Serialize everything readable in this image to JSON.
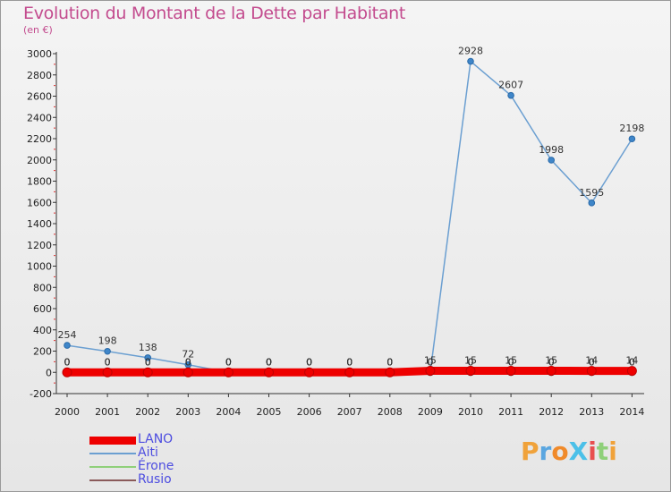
{
  "title": "Evolution du Montant de la Dette par Habitant",
  "subtitle": "(en €)",
  "logo": "ProXiti",
  "chart_data": {
    "type": "line",
    "title": "Evolution du Montant de la Dette par Habitant",
    "ylabel": "(en €)",
    "x": [
      "2000",
      "2001",
      "2002",
      "2003",
      "2004",
      "2005",
      "2006",
      "2007",
      "2008",
      "2009",
      "2010",
      "2011",
      "2012",
      "2013",
      "2014"
    ],
    "ylim": [
      -200,
      3000
    ],
    "yticks": [
      -200,
      0,
      200,
      400,
      600,
      800,
      1000,
      1200,
      1400,
      1600,
      1800,
      2000,
      2200,
      2400,
      2600,
      2800,
      3000
    ],
    "grid": false,
    "legend_position": "bottom-left",
    "series": [
      {
        "name": "LANO",
        "color": "#ee0000",
        "values": [
          0,
          0,
          0,
          0,
          0,
          0,
          0,
          0,
          0,
          15,
          15,
          15,
          15,
          14,
          14
        ],
        "labels": [
          "0",
          "0",
          "0",
          "0",
          "0",
          "0",
          "0",
          "0",
          "0",
          "15",
          "15",
          "15",
          "15",
          "14",
          "14"
        ]
      },
      {
        "name": "Aiti",
        "color": "#6b9fd1",
        "values": [
          254,
          198,
          138,
          72,
          0,
          0,
          0,
          0,
          0,
          0,
          2928,
          2607,
          1998,
          1595,
          2198
        ],
        "labels": [
          "254",
          "198",
          "138",
          "72",
          "0",
          "0",
          "0",
          "0",
          "0",
          "0",
          "2928",
          "2607",
          "1998",
          "1595",
          "2198"
        ]
      },
      {
        "name": "Érone",
        "color": "#8fd07a",
        "values": [
          0,
          0,
          0,
          0,
          0,
          0,
          0,
          0,
          0,
          0,
          0,
          0,
          0,
          0,
          0
        ],
        "labels": [
          "0",
          "0",
          "0",
          "0",
          "0",
          "0",
          "0",
          "0",
          "0",
          "0",
          "0",
          "0",
          "0",
          "0",
          "0"
        ]
      },
      {
        "name": "Rusio",
        "color": "#8a5a5a",
        "values": [
          0,
          0,
          0,
          0,
          0,
          0,
          0,
          0,
          0,
          0,
          0,
          0,
          0,
          0,
          0
        ],
        "labels": [
          "0",
          "0",
          "0",
          "0",
          "0",
          "0",
          "0",
          "0",
          "0",
          "0",
          "0",
          "0",
          "0",
          "0",
          "0"
        ]
      }
    ]
  }
}
